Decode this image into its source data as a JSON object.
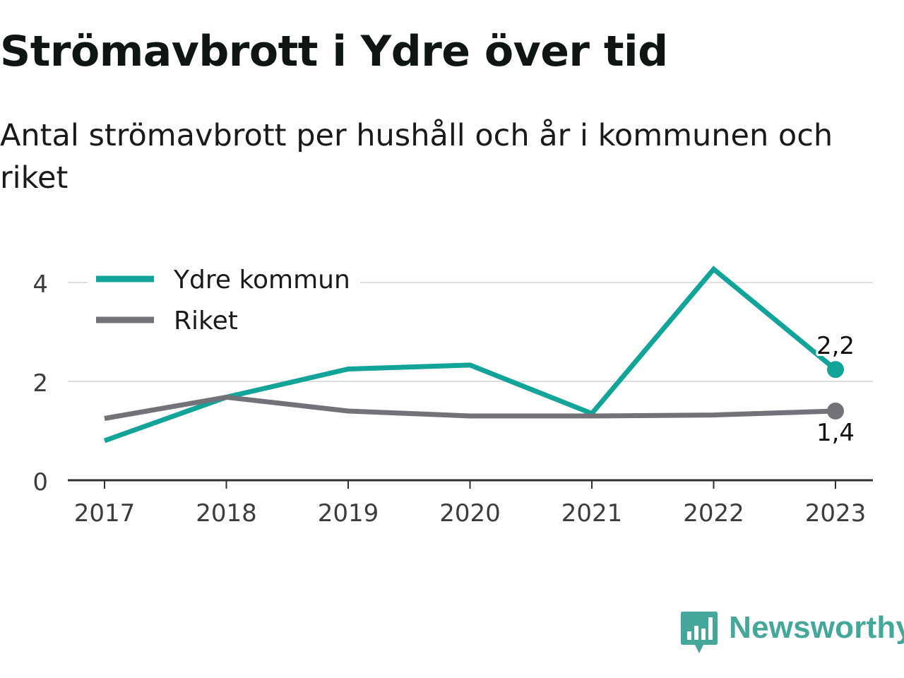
{
  "header": {
    "title": "Strömavbrott i Ydre över tid",
    "subtitle": "Antal strömavbrott per hushåll och år i kommunen och riket"
  },
  "brand": {
    "name": "Newsworthy",
    "icon": "newsworthy-logo-icon",
    "color": "#43a79a"
  },
  "chart_data": {
    "type": "line",
    "x": [
      "2017",
      "2018",
      "2019",
      "2020",
      "2021",
      "2022",
      "2023"
    ],
    "ylim": [
      0,
      4.6
    ],
    "yticks": [
      0,
      2,
      4
    ],
    "grid": true,
    "legend_position": "top-left",
    "series": [
      {
        "name": "Ydre kommun",
        "color": "#13a499",
        "values": [
          0.8,
          1.68,
          2.25,
          2.33,
          1.35,
          4.27,
          2.24
        ],
        "end_label": "2,2",
        "end_label_position": "above"
      },
      {
        "name": "Riket",
        "color": "#737278",
        "values": [
          1.25,
          1.68,
          1.4,
          1.3,
          1.3,
          1.32,
          1.4
        ],
        "end_label": "1,4",
        "end_label_position": "below"
      }
    ]
  }
}
